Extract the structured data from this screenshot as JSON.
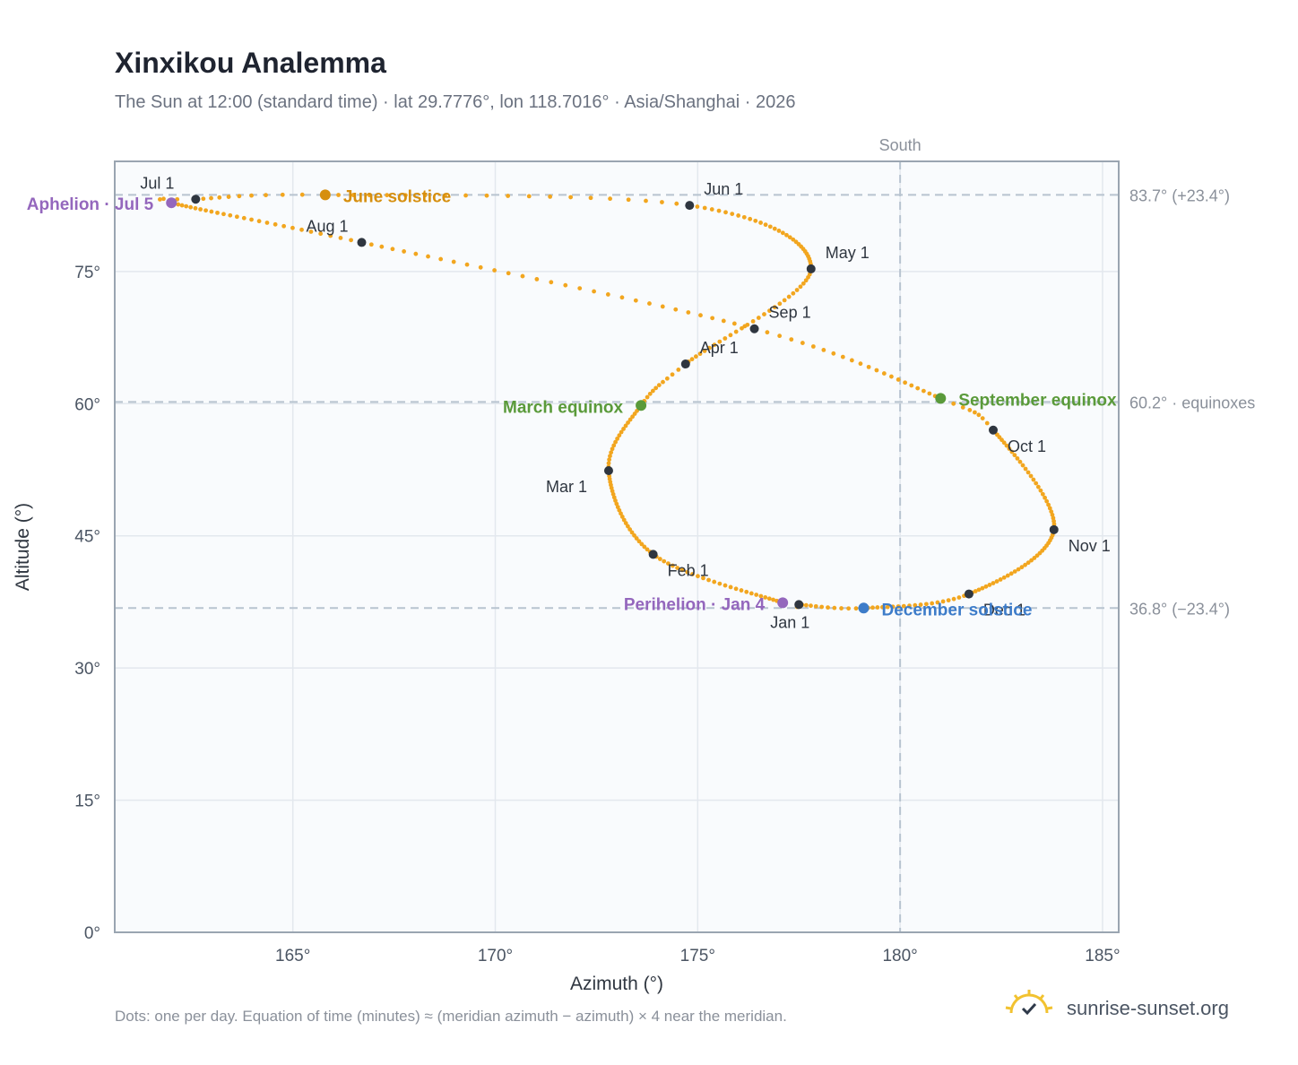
{
  "title": "Xinxikou Analemma",
  "subtitle": "The Sun at 12:00 (standard time) · lat 29.7776°, lon 118.7016° · Asia/Shanghai · 2026",
  "footnote": "Dots: one per day. Equation of time (minutes) ≈ (meridian azimuth − azimuth) × 4 near the meridian.",
  "brand": "sunrise-sunset.org",
  "chart_data": {
    "type": "scatter",
    "xlabel": "Azimuth (°)",
    "ylabel": "Altitude (°)",
    "xlim": [
      160.6,
      185.4
    ],
    "ylim": [
      0,
      87.5
    ],
    "xticks": [
      165,
      170,
      175,
      180,
      185
    ],
    "xtick_labels": [
      "165°",
      "170°",
      "175°",
      "180°",
      "185°"
    ],
    "yticks": [
      0,
      15,
      30,
      45,
      60,
      75
    ],
    "ytick_labels": [
      "0°",
      "15°",
      "30°",
      "45°",
      "60°",
      "75°"
    ],
    "grid": true,
    "colors": {
      "curve": "#f2a61f",
      "month_marker": "#2f3640",
      "solstice_june": "#d68f0f",
      "solstice_december": "#3d7cc9",
      "equinox": "#5a9a3a",
      "apsis": "#9467bd",
      "reference": "#b8c4d0",
      "plot_bg": "#f9fbfd"
    },
    "reference_lines": {
      "horizontal": [
        {
          "y": 83.7,
          "label": "83.7° (+23.4°)"
        },
        {
          "y": 60.2,
          "label": "60.2° · equinoxes"
        },
        {
          "y": 36.8,
          "label": "36.8° (−23.4°)"
        }
      ],
      "vertical": [
        {
          "x": 180,
          "label": "South"
        }
      ]
    },
    "analemma_anchors": [
      {
        "day": 1,
        "az": 177.5,
        "alt": 37.2
      },
      {
        "day": 4,
        "az": 177.1,
        "alt": 37.4
      },
      {
        "day": 32,
        "az": 173.9,
        "alt": 42.9
      },
      {
        "day": 60,
        "az": 172.8,
        "alt": 52.4
      },
      {
        "day": 80,
        "az": 173.6,
        "alt": 59.8
      },
      {
        "day": 91,
        "az": 174.7,
        "alt": 64.5
      },
      {
        "day": 121,
        "az": 177.8,
        "alt": 75.3
      },
      {
        "day": 152,
        "az": 174.8,
        "alt": 82.5
      },
      {
        "day": 172,
        "az": 165.8,
        "alt": 83.7
      },
      {
        "day": 182,
        "az": 162.6,
        "alt": 83.2
      },
      {
        "day": 186,
        "az": 162.0,
        "alt": 82.8
      },
      {
        "day": 213,
        "az": 166.7,
        "alt": 78.3
      },
      {
        "day": 244,
        "az": 176.4,
        "alt": 68.5
      },
      {
        "day": 266,
        "az": 181.0,
        "alt": 60.6
      },
      {
        "day": 274,
        "az": 182.3,
        "alt": 57.0
      },
      {
        "day": 305,
        "az": 183.8,
        "alt": 45.7
      },
      {
        "day": 335,
        "az": 181.7,
        "alt": 38.4
      },
      {
        "day": 355,
        "az": 179.1,
        "alt": 36.8
      },
      {
        "day": 366,
        "az": 177.5,
        "alt": 37.2
      }
    ],
    "month_markers": [
      {
        "label": "Jan 1",
        "az": 177.5,
        "alt": 37.2,
        "pos": "below"
      },
      {
        "label": "Feb 1",
        "az": 173.9,
        "alt": 42.9,
        "pos": "below-right"
      },
      {
        "label": "Mar 1",
        "az": 172.8,
        "alt": 52.4,
        "pos": "below-left"
      },
      {
        "label": "Apr 1",
        "az": 174.7,
        "alt": 64.5,
        "pos": "above-right"
      },
      {
        "label": "May 1",
        "az": 177.8,
        "alt": 75.3,
        "pos": "above-right"
      },
      {
        "label": "Jun 1",
        "az": 174.8,
        "alt": 82.5,
        "pos": "above-right"
      },
      {
        "label": "Jul 1",
        "az": 162.6,
        "alt": 83.2,
        "pos": "above-left"
      },
      {
        "label": "Aug 1",
        "az": 166.7,
        "alt": 78.3,
        "pos": "above-left"
      },
      {
        "label": "Sep 1",
        "az": 176.4,
        "alt": 68.5,
        "pos": "above-right"
      },
      {
        "label": "Oct 1",
        "az": 182.3,
        "alt": 57.0,
        "pos": "below-right"
      },
      {
        "label": "Nov 1",
        "az": 183.8,
        "alt": 45.7,
        "pos": "below-right"
      },
      {
        "label": "Dec 1",
        "az": 181.7,
        "alt": 38.4,
        "pos": "below-right"
      }
    ],
    "events": [
      {
        "label": "June solstice",
        "az": 165.8,
        "alt": 83.7,
        "kind": "solstice_june",
        "pos": "right"
      },
      {
        "label": "December solstice",
        "az": 179.1,
        "alt": 36.8,
        "kind": "solstice_december",
        "pos": "right"
      },
      {
        "label": "March equinox",
        "az": 173.6,
        "alt": 59.8,
        "kind": "equinox",
        "pos": "left"
      },
      {
        "label": "September equinox",
        "az": 181.0,
        "alt": 60.6,
        "kind": "equinox",
        "pos": "right"
      },
      {
        "label": "Perihelion · Jan 4",
        "az": 177.1,
        "alt": 37.4,
        "kind": "apsis",
        "pos": "left"
      },
      {
        "label": "Aphelion · Jul 5",
        "az": 162.0,
        "alt": 82.8,
        "kind": "apsis",
        "pos": "left"
      }
    ]
  }
}
